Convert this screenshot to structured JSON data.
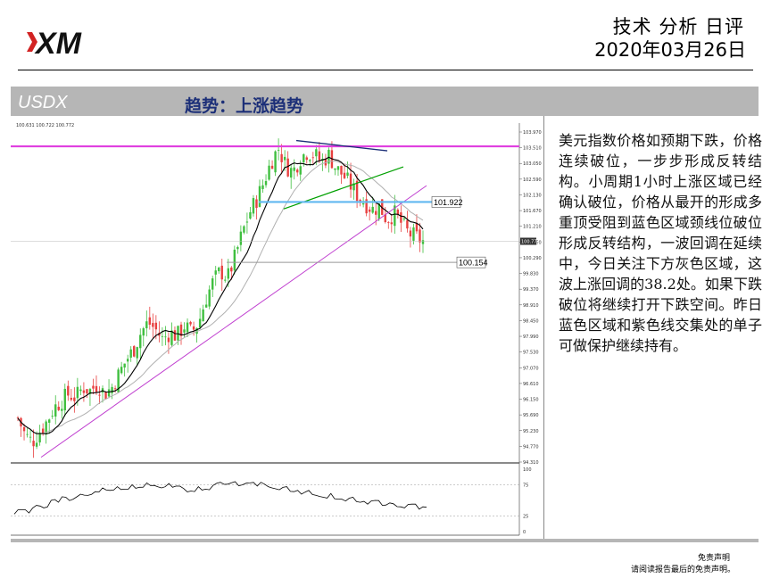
{
  "header": {
    "logo_text": "XM",
    "title": "技术 分析 日评",
    "date": "2020年03月26日"
  },
  "band": {
    "symbol": "USDX",
    "trend": "趋势：上涨趋势"
  },
  "commentary": "美元指数价格如预期下跌，价格连续破位，一步步形成反转结构。小周期1小时上涨区域已经确认破位，价格从最开的形成多重顶受阻到蓝色区域颈线位破位形成反转结构，一波回调在延续中，今日关注下方灰色区域，这波上涨回调的38.2处。如果下跌破位将继续打开下跌空间。昨日蓝色区域和紫色线交集处的单子可做保护继续持有。",
  "disclaimer": {
    "line1": "免责声明",
    "line2": "请阅读报告最后的免责声明。"
  },
  "colors": {
    "up_candle": "#3fbf3f",
    "down_candle": "#e84040",
    "ma_black": "#000000",
    "ma_gray": "#b0b0b0",
    "magenta_level": "#e040e0",
    "trendline_violet": "#c040d0",
    "blue_zone": "#60b8f0",
    "green_channel": "#00a000",
    "navy_top_line": "#1c2f78"
  },
  "chart_data": {
    "type": "candlestick",
    "ohlc_readout": "100.631 100.722 100.772",
    "y_ticks": [
      "103.970",
      "103.510",
      "103.050",
      "102.590",
      "102.130",
      "101.670",
      "101.210",
      "100.750",
      "100.290",
      "99.830",
      "99.370",
      "98.910",
      "98.450",
      "97.990",
      "97.530",
      "97.070",
      "96.610",
      "96.150",
      "95.690",
      "95.230",
      "94.770",
      "94.310"
    ],
    "ylim": [
      94.31,
      103.97
    ],
    "levels": [
      {
        "label": "101.922",
        "value": 101.922,
        "color": "#60b8f0"
      },
      {
        "label": "100.154",
        "value": 100.154,
        "color": "#999999"
      }
    ],
    "current_price": "100.772",
    "magenta_resistance": 103.55,
    "close_path": [
      95.6,
      95.1,
      94.9,
      95.2,
      95.5,
      95.9,
      96.1,
      96.3,
      96.2,
      96.5,
      96.4,
      96.6,
      96.3,
      96.5,
      96.9,
      97.3,
      97.6,
      98.1,
      98.4,
      98.2,
      97.9,
      98.1,
      98.0,
      98.3,
      98.1,
      98.4,
      99.1,
      99.6,
      99.9,
      99.7,
      100.3,
      101.0,
      101.6,
      102.0,
      102.5,
      103.1,
      103.5,
      103.0,
      102.8,
      103.2,
      103.4,
      103.3,
      103.1,
      103.3,
      102.9,
      102.7,
      102.4,
      102.1,
      101.9,
      101.7,
      101.8,
      101.4,
      101.6,
      101.3,
      101.0,
      100.9,
      100.77
    ],
    "oscillator": {
      "ylim": [
        0,
        100
      ],
      "y_ticks": [
        "100",
        "75",
        "25",
        "0"
      ],
      "values": [
        28,
        35,
        30,
        42,
        38,
        50,
        47,
        55,
        52,
        60,
        58,
        64,
        70,
        66,
        72,
        68,
        75,
        71,
        78,
        74,
        70,
        77,
        73,
        69,
        65,
        72,
        68,
        74,
        79,
        76,
        80,
        75,
        78,
        73,
        76,
        70,
        67,
        72,
        64,
        60,
        66,
        58,
        55,
        61,
        52,
        49,
        55,
        47,
        44,
        50,
        42,
        46,
        40,
        38,
        44,
        36,
        39
      ]
    }
  }
}
